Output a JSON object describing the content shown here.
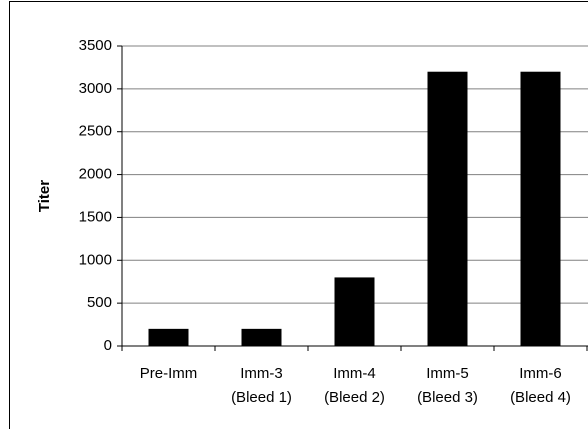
{
  "chart_data": {
    "type": "bar",
    "y_label": "Titer",
    "categories": [
      [
        "Pre-Imm"
      ],
      [
        "Imm-3",
        "(Bleed 1)"
      ],
      [
        "Imm-4",
        "(Bleed 2)"
      ],
      [
        "Imm-5",
        "(Bleed 3)"
      ],
      [
        "Imm-6",
        "(Bleed 4)"
      ]
    ],
    "values": [
      200,
      200,
      800,
      3200,
      3200
    ],
    "color": "#000000",
    "ylim": [
      0,
      3500
    ],
    "yticks": [
      0,
      500,
      1000,
      1500,
      2000,
      2500,
      3000,
      3500
    ],
    "grid": true
  }
}
